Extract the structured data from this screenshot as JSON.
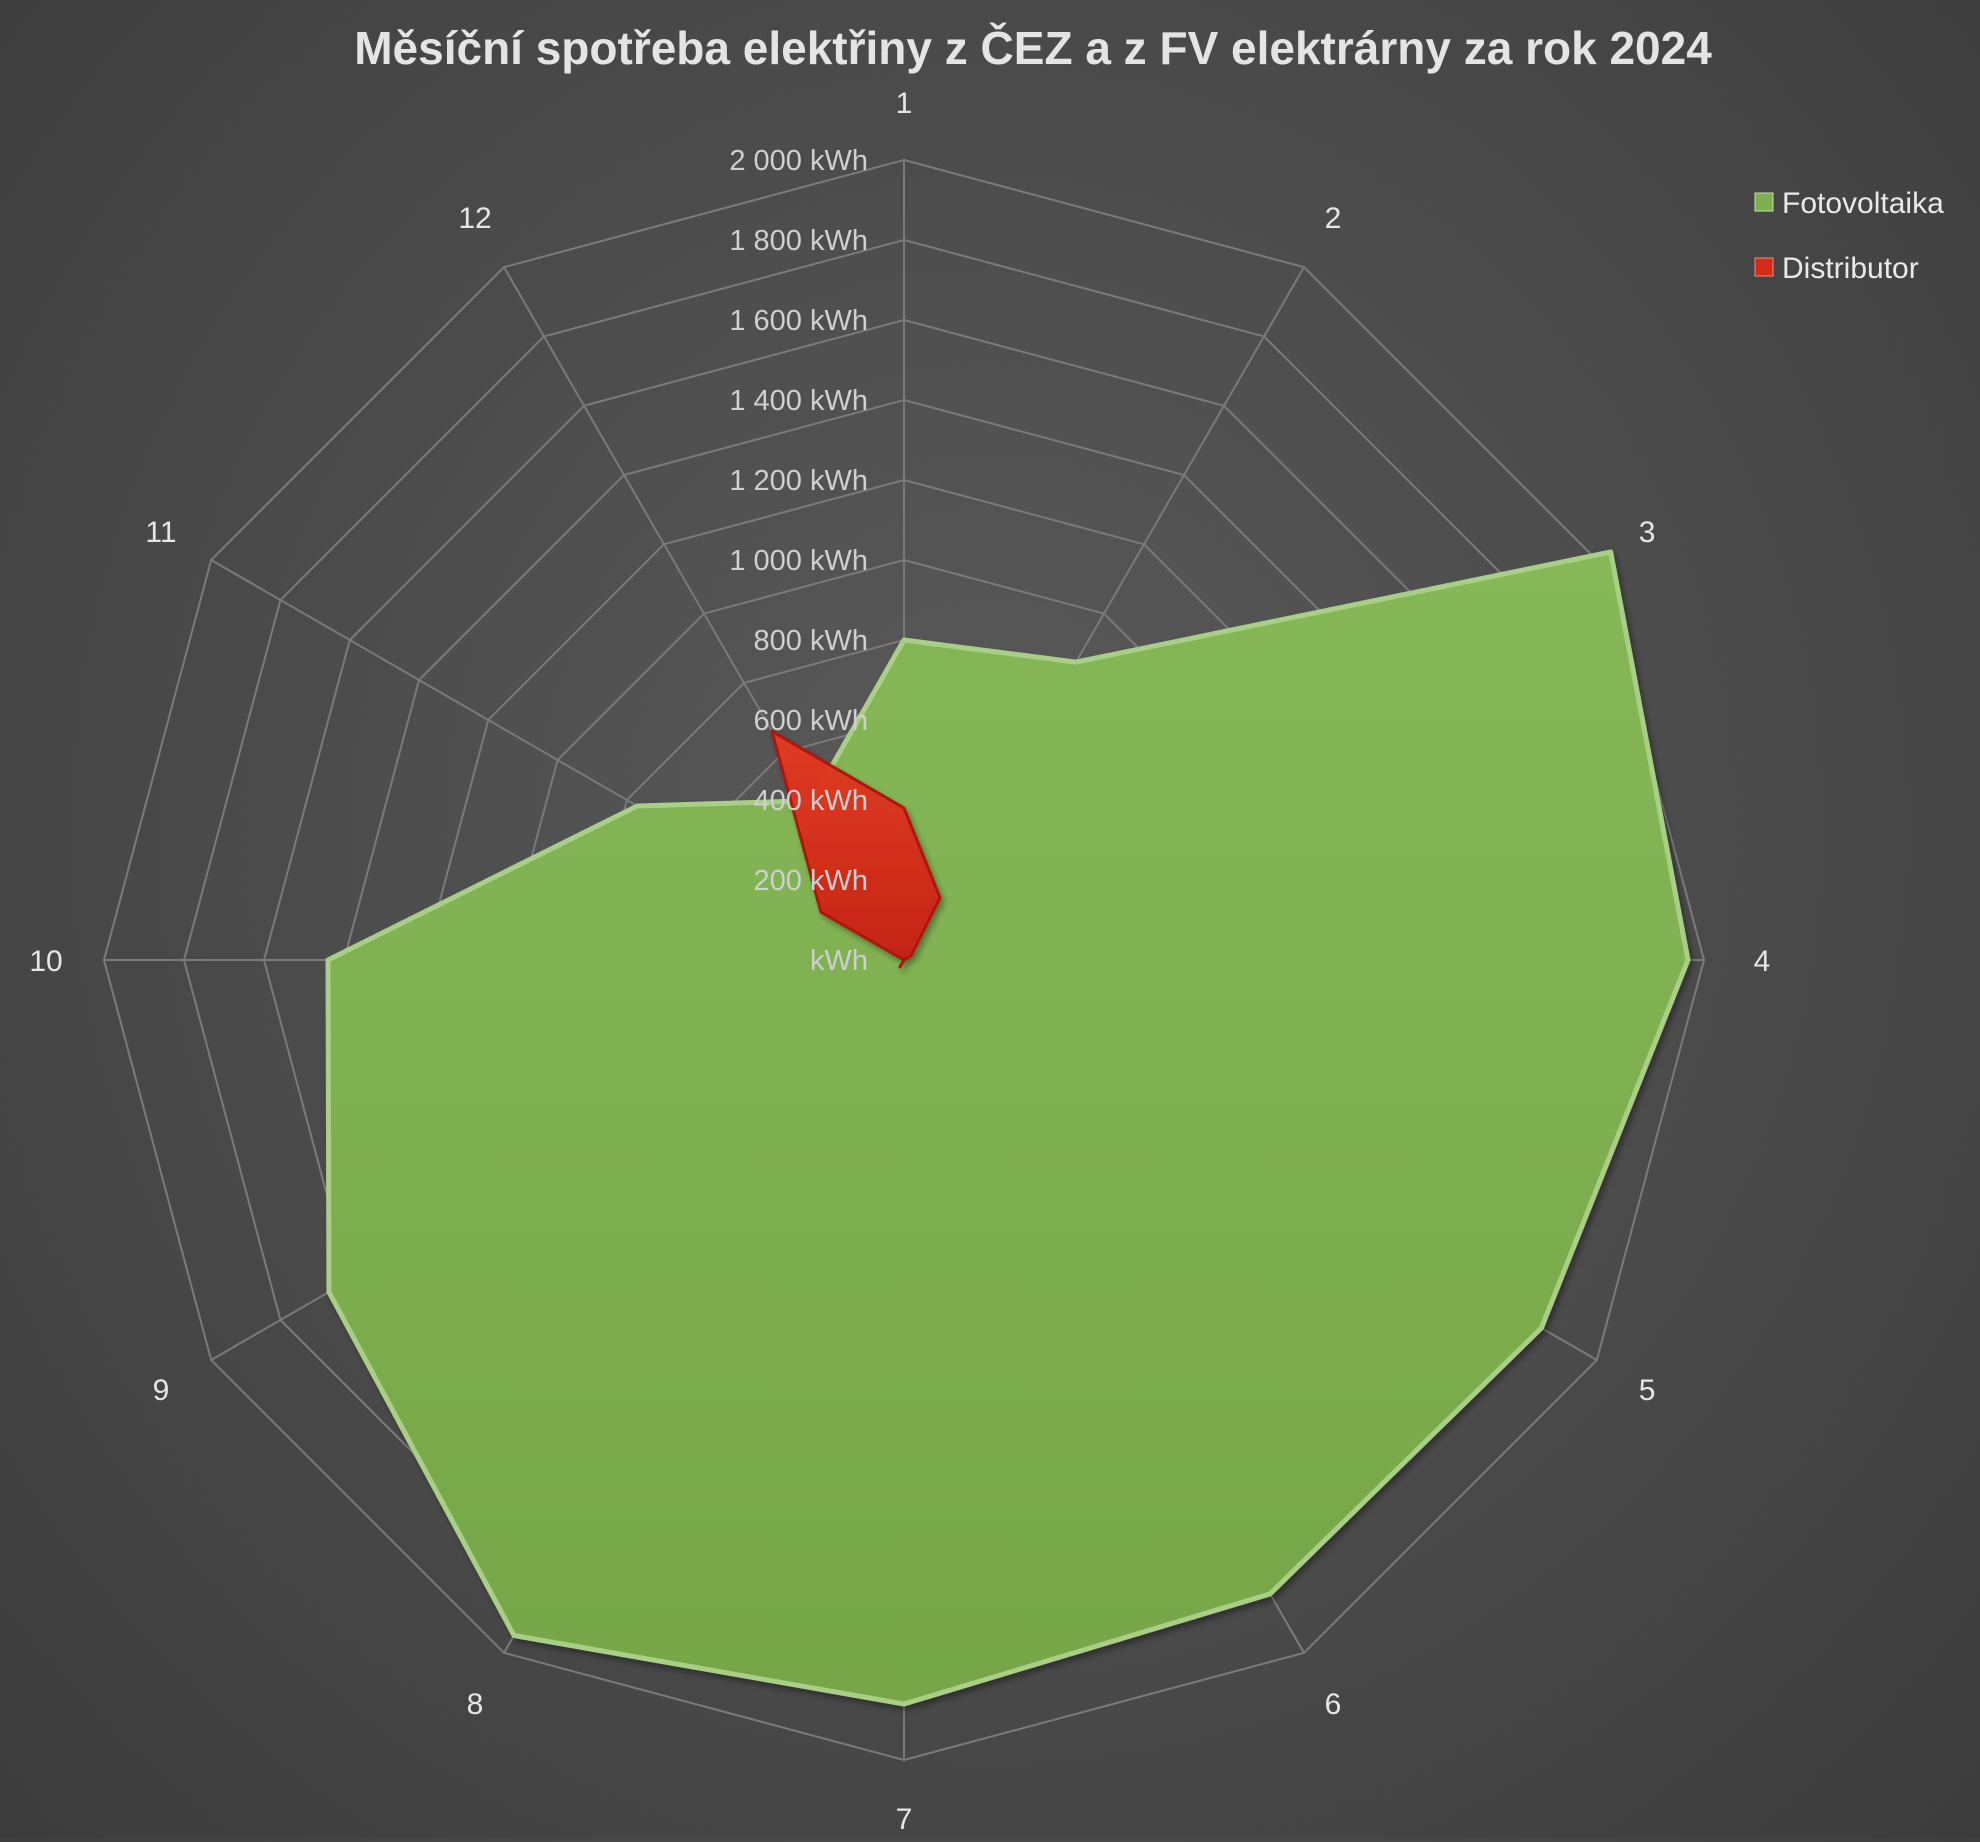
{
  "chart_data": {
    "type": "radar",
    "title": "Měsíční spotřeba elektřiny z ČEZ a z FV elektrárny za rok 2024",
    "categories": [
      "1",
      "2",
      "3",
      "4",
      "5",
      "6",
      "7",
      "8",
      "9",
      "10",
      "11",
      "12"
    ],
    "radial_ticks": [
      "kWh",
      "200 kWh",
      "400 kWh",
      "600 kWh",
      "800 kWh",
      "1 000 kWh",
      "1 200 kWh",
      "1 400 kWh",
      "1 600 kWh",
      "1 800 kWh",
      "2 000 kWh"
    ],
    "rlim": [
      0,
      2000
    ],
    "tick_step": 200,
    "series": [
      {
        "name": "Fotovoltaika",
        "color": "#7dae4f",
        "values": [
          800,
          860,
          2040,
          1960,
          1840,
          1830,
          1860,
          1950,
          1660,
          1440,
          770,
          460
        ]
      },
      {
        "name": "Distributor",
        "color": "#d42b1a",
        "values": [
          380,
          180,
          20,
          0,
          0,
          0,
          0,
          20,
          0,
          0,
          240,
          660
        ]
      }
    ],
    "legend_position": "top-right"
  }
}
